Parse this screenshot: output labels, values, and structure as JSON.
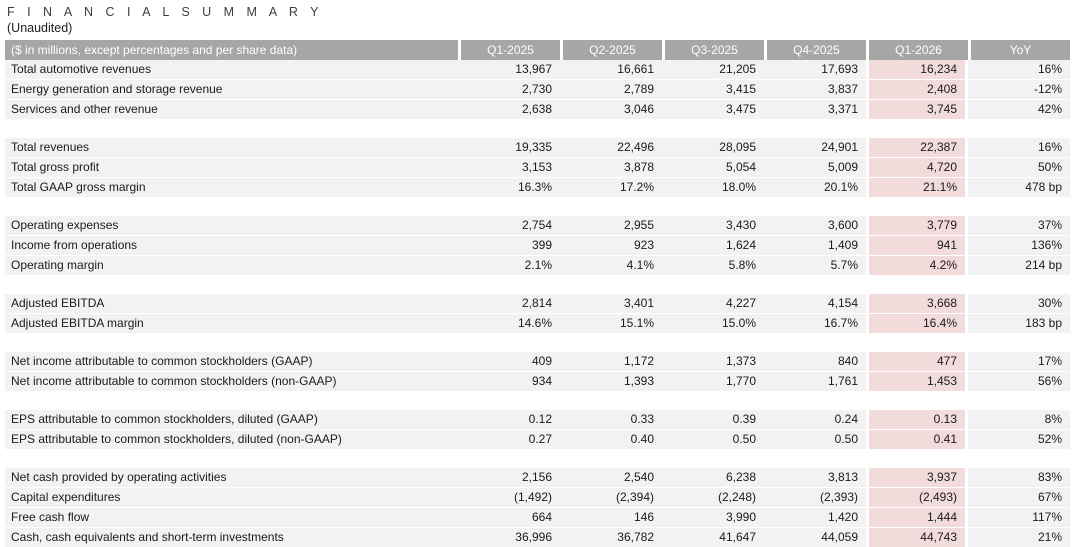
{
  "page": {
    "title": "F I N A N C I A L   S U M M A R Y",
    "subtitle": "(Unaudited)"
  },
  "table": {
    "header": {
      "label": "($ in millions, except percentages and per share data)",
      "columns": [
        "Q1-2025",
        "Q2-2025",
        "Q3-2025",
        "Q4-2025",
        "Q1-2026",
        "YoY"
      ]
    },
    "highlight_column": "Q1-2026",
    "colors": {
      "header_bg": "#a6a6a6",
      "header_text": "#ffffff",
      "row_bg": "#f2f2f2",
      "highlight_bg": "#f2dcdb",
      "text": "#1a1a1a"
    },
    "sections": [
      {
        "rows": [
          {
            "label": "Total automotive revenues",
            "values": [
              "13,967",
              "16,661",
              "21,205",
              "17,693",
              "16,234",
              "16%"
            ]
          },
          {
            "label": "Energy generation and storage revenue",
            "values": [
              "2,730",
              "2,789",
              "3,415",
              "3,837",
              "2,408",
              "-12%"
            ]
          },
          {
            "label": "Services and other revenue",
            "values": [
              "2,638",
              "3,046",
              "3,475",
              "3,371",
              "3,745",
              "42%"
            ]
          }
        ]
      },
      {
        "rows": [
          {
            "label": "Total revenues",
            "values": [
              "19,335",
              "22,496",
              "28,095",
              "24,901",
              "22,387",
              "16%"
            ]
          },
          {
            "label": "Total gross profit",
            "values": [
              "3,153",
              "3,878",
              "5,054",
              "5,009",
              "4,720",
              "50%"
            ]
          },
          {
            "label": "Total GAAP gross margin",
            "values": [
              "16.3%",
              "17.2%",
              "18.0%",
              "20.1%",
              "21.1%",
              "478 bp"
            ]
          }
        ]
      },
      {
        "rows": [
          {
            "label": "Operating expenses",
            "values": [
              "2,754",
              "2,955",
              "3,430",
              "3,600",
              "3,779",
              "37%"
            ]
          },
          {
            "label": "Income from operations",
            "values": [
              "399",
              "923",
              "1,624",
              "1,409",
              "941",
              "136%"
            ]
          },
          {
            "label": "Operating margin",
            "values": [
              "2.1%",
              "4.1%",
              "5.8%",
              "5.7%",
              "4.2%",
              "214 bp"
            ]
          }
        ]
      },
      {
        "rows": [
          {
            "label": "Adjusted EBITDA",
            "values": [
              "2,814",
              "3,401",
              "4,227",
              "4,154",
              "3,668",
              "30%"
            ]
          },
          {
            "label": "Adjusted EBITDA margin",
            "values": [
              "14.6%",
              "15.1%",
              "15.0%",
              "16.7%",
              "16.4%",
              "183 bp"
            ]
          }
        ]
      },
      {
        "rows": [
          {
            "label": "Net income attributable to common stockholders (GAAP)",
            "values": [
              "409",
              "1,172",
              "1,373",
              "840",
              "477",
              "17%"
            ]
          },
          {
            "label": "Net income attributable to common stockholders (non-GAAP)",
            "values": [
              "934",
              "1,393",
              "1,770",
              "1,761",
              "1,453",
              "56%"
            ]
          }
        ]
      },
      {
        "rows": [
          {
            "label": "EPS attributable to common stockholders, diluted (GAAP)",
            "values": [
              "0.12",
              "0.33",
              "0.39",
              "0.24",
              "0.13",
              "8%"
            ]
          },
          {
            "label": "EPS attributable to common stockholders, diluted (non-GAAP)",
            "values": [
              "0.27",
              "0.40",
              "0.50",
              "0.50",
              "0.41",
              "52%"
            ]
          }
        ]
      },
      {
        "rows": [
          {
            "label": "Net cash provided by operating activities",
            "values": [
              "2,156",
              "2,540",
              "6,238",
              "3,813",
              "3,937",
              "83%"
            ]
          },
          {
            "label": "Capital expenditures",
            "values": [
              "(1,492)",
              "(2,394)",
              "(2,248)",
              "(2,393)",
              "(2,493)",
              "67%"
            ]
          },
          {
            "label": "Free cash flow",
            "values": [
              "664",
              "146",
              "3,990",
              "1,420",
              "1,444",
              "117%"
            ]
          },
          {
            "label": "Cash, cash equivalents and short-term investments",
            "values": [
              "36,996",
              "36,782",
              "41,647",
              "44,059",
              "44,743",
              "21%"
            ]
          }
        ]
      }
    ]
  }
}
